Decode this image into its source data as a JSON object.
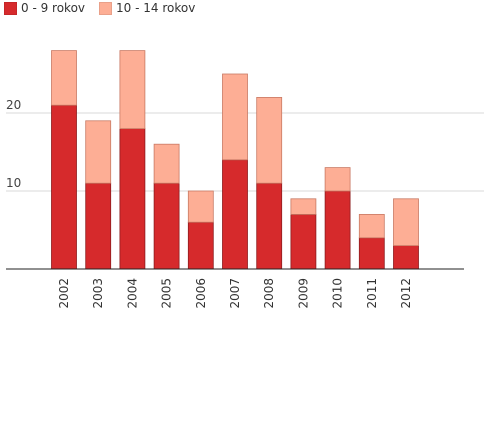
{
  "chart_data": {
    "type": "bar",
    "stacked": true,
    "categories": [
      "2002",
      "2003",
      "2004",
      "2005",
      "2006",
      "2007",
      "2008",
      "2009",
      "2010",
      "2011",
      "2012"
    ],
    "series": [
      {
        "name": "0 - 9 rokov",
        "color": "#d62a2c",
        "values": [
          21,
          11,
          18,
          11,
          6,
          14,
          11,
          7,
          10,
          4,
          3
        ]
      },
      {
        "name": "10 - 14 rokov",
        "color": "#fdae95",
        "values": [
          7,
          8,
          10,
          5,
          4,
          11,
          11,
          2,
          3,
          3,
          6
        ]
      }
    ],
    "ylim": [
      0,
      30
    ],
    "yticks": [
      10,
      20
    ],
    "grid": true,
    "legend_position": "top-left",
    "title": "",
    "xlabel": "",
    "ylabel": ""
  }
}
